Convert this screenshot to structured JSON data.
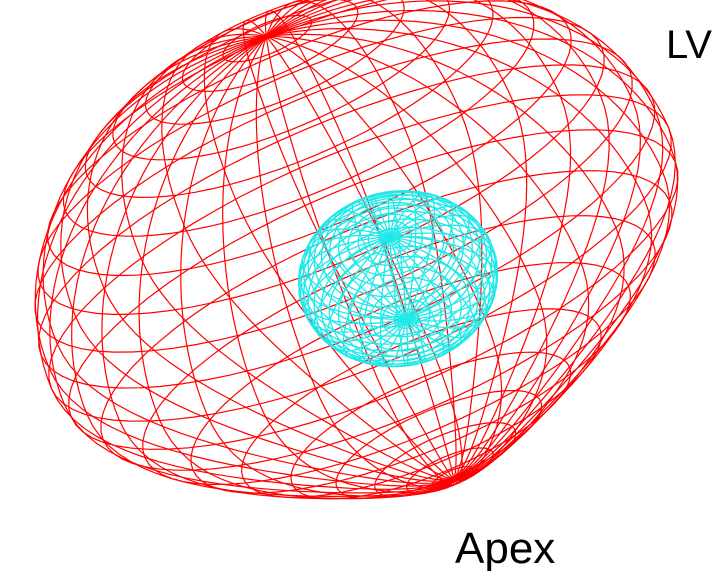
{
  "labels": {
    "lv": "LV",
    "apex": "Apex"
  }
}
